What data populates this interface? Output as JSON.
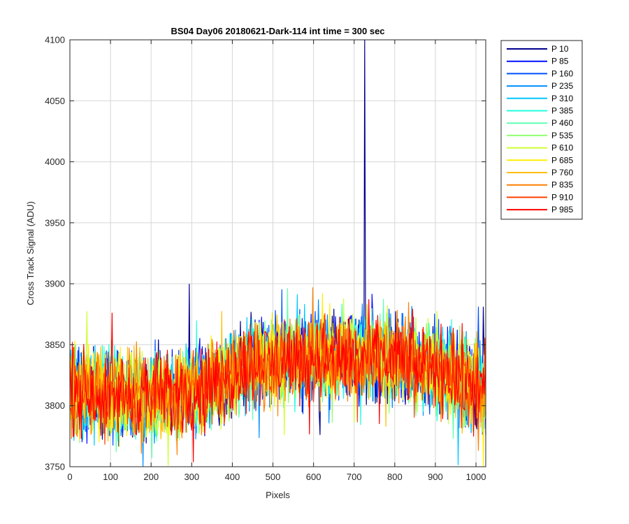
{
  "chart_data": {
    "type": "line",
    "title": "BS04 Day06 20180621-Dark-114 int time = 300 sec",
    "xlabel": "Pixels",
    "ylabel": "Cross Track Signal (ADU)",
    "xlim": [
      0,
      1024
    ],
    "ylim": [
      3750,
      4100
    ],
    "xticks": [
      0,
      100,
      200,
      300,
      400,
      500,
      600,
      700,
      800,
      900,
      1000
    ],
    "yticks": [
      3750,
      3800,
      3850,
      3900,
      3950,
      4000,
      4050,
      4100
    ],
    "grid": true,
    "legend_position": "outside-top-right",
    "baseline_profile": {
      "x": [
        0,
        100,
        200,
        300,
        380,
        420,
        500,
        700,
        800,
        900,
        1024
      ],
      "y": [
        3812,
        3810,
        3808,
        3812,
        3822,
        3833,
        3838,
        3840,
        3838,
        3832,
        3812
      ]
    },
    "noise_range": 45,
    "spike": {
      "series": "P 10",
      "x": 726,
      "y": 4100
    },
    "series": [
      {
        "name": "P 10",
        "color": "#00008f"
      },
      {
        "name": "P 85",
        "color": "#0010ff"
      },
      {
        "name": "P 160",
        "color": "#0050ff"
      },
      {
        "name": "P 235",
        "color": "#0090ff"
      },
      {
        "name": "P 310",
        "color": "#00c8ff"
      },
      {
        "name": "P 385",
        "color": "#20ffdf"
      },
      {
        "name": "P 460",
        "color": "#60ffb0"
      },
      {
        "name": "P 535",
        "color": "#90ff70"
      },
      {
        "name": "P 610",
        "color": "#cfff30"
      },
      {
        "name": "P 685",
        "color": "#ffef00"
      },
      {
        "name": "P 760",
        "color": "#ffbf00"
      },
      {
        "name": "P 835",
        "color": "#ff8000"
      },
      {
        "name": "P 910",
        "color": "#ff4000"
      },
      {
        "name": "P 985",
        "color": "#ff0000"
      }
    ]
  }
}
